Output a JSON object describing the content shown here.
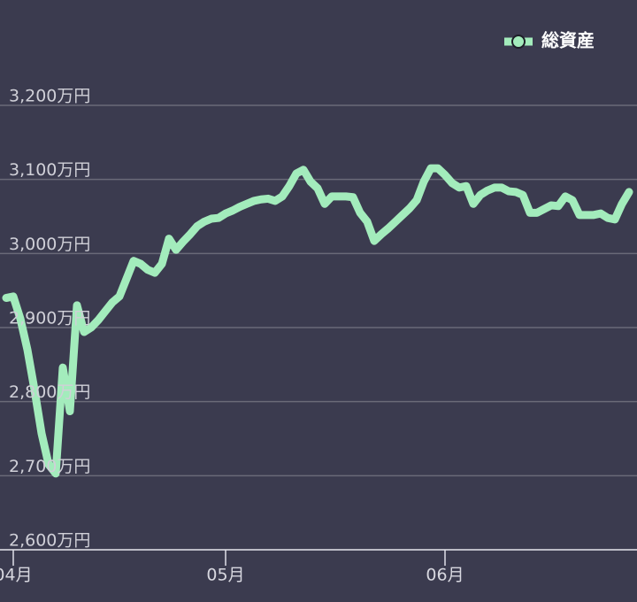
{
  "chart_data": {
    "type": "line",
    "categories": [
      null,
      "04月",
      null,
      null,
      null,
      null,
      null,
      null,
      null,
      null,
      null,
      null,
      null,
      null,
      null,
      null,
      null,
      null,
      null,
      null,
      null,
      null,
      null,
      null,
      null,
      null,
      null,
      null,
      null,
      null,
      null,
      "05月",
      null,
      null,
      null,
      null,
      null,
      null,
      null,
      null,
      null,
      null,
      null,
      null,
      null,
      null,
      null,
      null,
      null,
      null,
      null,
      null,
      null,
      null,
      null,
      null,
      null,
      null,
      null,
      null,
      null,
      null,
      "06月",
      null,
      null,
      null,
      null,
      null,
      null,
      null,
      null,
      null,
      null,
      null,
      null,
      null,
      null,
      null,
      null,
      null,
      null,
      null,
      null,
      null,
      null,
      null,
      null,
      null,
      null
    ],
    "series": [
      {
        "name": "総資産",
        "color": "#a3ecbc",
        "values": [
          2940,
          2942,
          2912,
          2870,
          2816,
          2757,
          2715,
          2703,
          2846,
          2787,
          2930,
          2894,
          2900,
          2910,
          2922,
          2934,
          2942,
          2966,
          2990,
          2986,
          2978,
          2974,
          2986,
          3020,
          3005,
          3016,
          3026,
          3037,
          3043,
          3047,
          3048,
          3054,
          3058,
          3063,
          3067,
          3071,
          3073,
          3074,
          3071,
          3077,
          3091,
          3108,
          3113,
          3097,
          3088,
          3067,
          3077,
          3077,
          3077,
          3076,
          3055,
          3043,
          3017,
          3026,
          3034,
          3043,
          3052,
          3061,
          3072,
          3097,
          3115,
          3115,
          3106,
          3095,
          3089,
          3091,
          3067,
          3079,
          3085,
          3089,
          3089,
          3084,
          3083,
          3079,
          3055,
          3055,
          3060,
          3065,
          3064,
          3077,
          3072,
          3052,
          3052,
          3052,
          3054,
          3048,
          3046,
          3067,
          3083
        ]
      }
    ],
    "ylim": [
      2600,
      3200
    ],
    "yticks": [
      {
        "value": 2600,
        "label": "2,600万円"
      },
      {
        "value": 2700,
        "label": "2,700万円"
      },
      {
        "value": 2800,
        "label": "2,800万円"
      },
      {
        "value": 2900,
        "label": "2,900万円"
      },
      {
        "value": 3000,
        "label": "3,000万円"
      },
      {
        "value": 3100,
        "label": "3,100万円"
      },
      {
        "value": 3200,
        "label": "3,200万円"
      }
    ],
    "grid": true,
    "legend": "top-right"
  }
}
